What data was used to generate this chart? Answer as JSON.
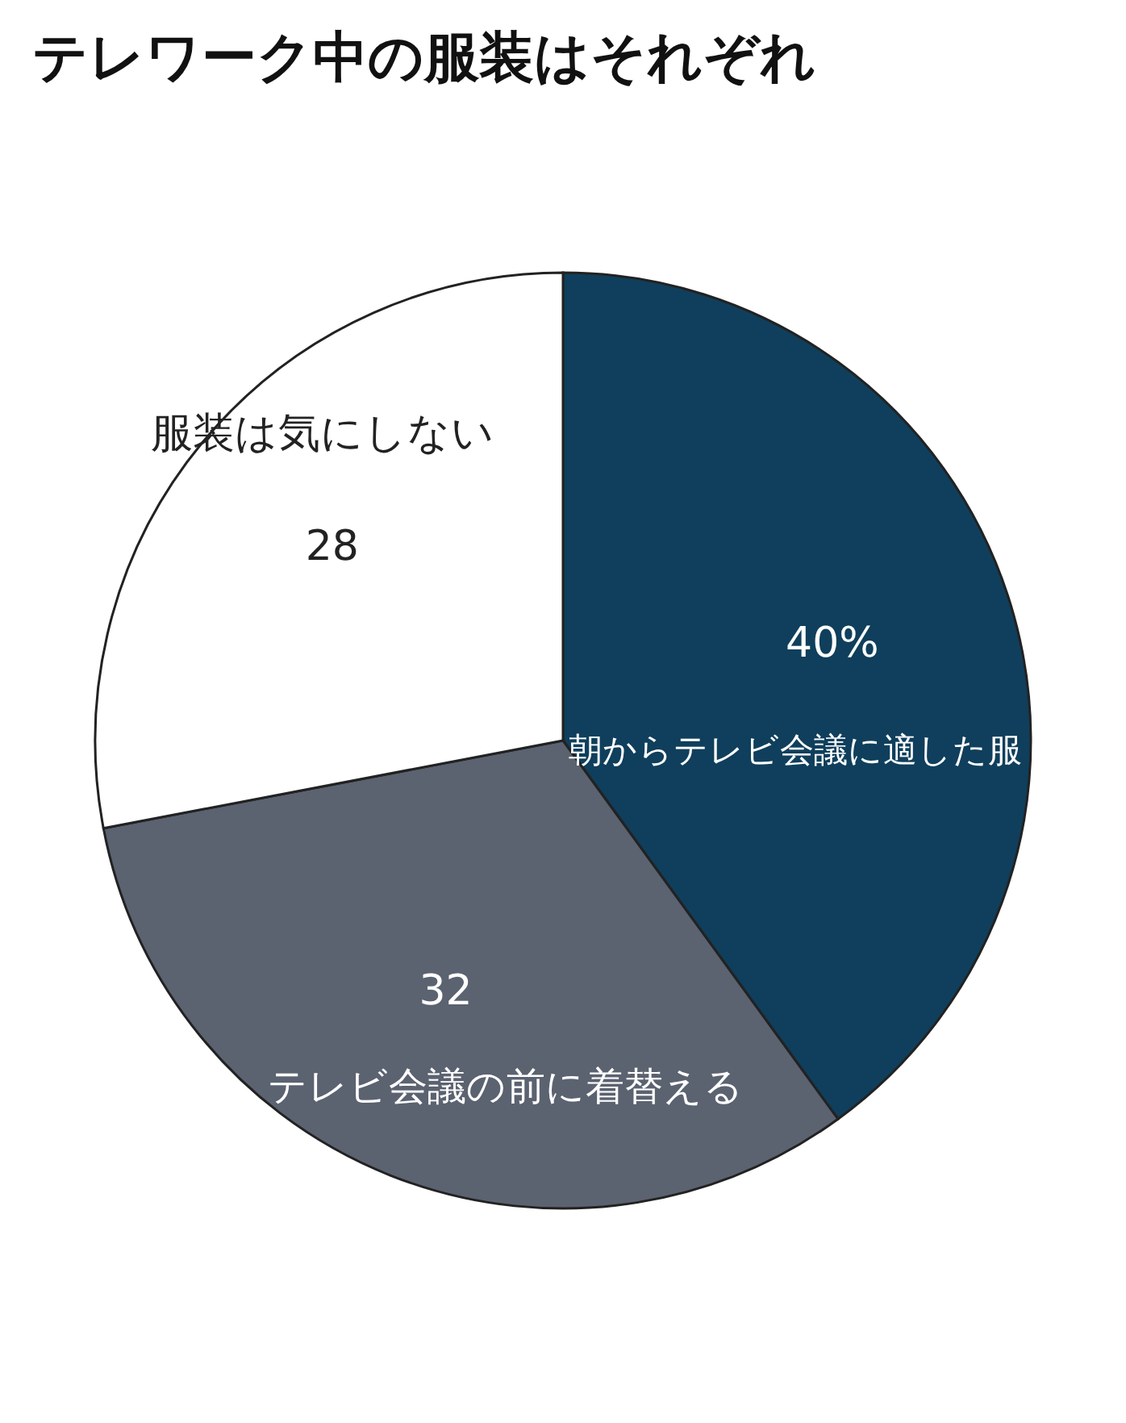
{
  "chart_data": {
    "type": "pie",
    "title": "テレワーク中の服装はそれぞれ",
    "categories": [
      "朝からテレビ会議に適した服",
      "テレビ会議の前に着替える",
      "服装は気にしない"
    ],
    "values": [
      40,
      32,
      28
    ],
    "colors": [
      "#0f3f5c",
      "#5b6270",
      "#ffffff"
    ],
    "value_labels": [
      "40%",
      "32",
      "28"
    ],
    "legend": false
  }
}
